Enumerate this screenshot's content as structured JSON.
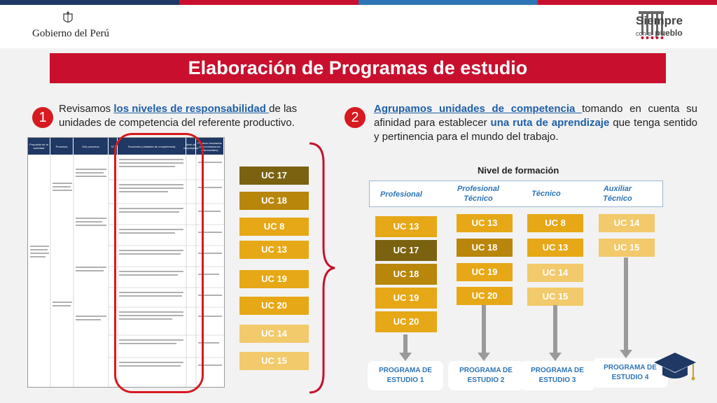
{
  "header": {
    "gob_label": "Gobierno del Perú",
    "brand_line1": "Siempre",
    "brand_line2_small": "con el",
    "brand_line2": "pueblo"
  },
  "title": "Elaboración de Programas de estudio",
  "step1": {
    "number": "1",
    "pre": "Revisamos ",
    "link": "los niveles de responsabilidad ",
    "post": "de las unidades de competencia del referente productivo."
  },
  "step2": {
    "number": "2",
    "link": "Agrupamos unidades de competencia ",
    "mid": "tomando en cuenta su afinidad para establecer ",
    "em": "una ruta de aprendizaje",
    "post": " que tenga sentido y pertinencia para el mundo del trabajo."
  },
  "table_headers": [
    "Propósito de la actividad",
    "Procesos",
    "Sub procesos",
    "N°",
    "Funciones (unidades de competencia)",
    "Nivel de complejidad",
    "Puestos vinculados (denominaciones referenciales)"
  ],
  "uc_column": [
    "UC 17",
    "UC 18",
    "UC 8",
    "UC 13",
    "UC 19",
    "UC 20",
    "UC 14",
    "UC 15"
  ],
  "nivel_title": "Nivel de formación",
  "levels": [
    "Profesional",
    "Profesional Técnico",
    "Técnico",
    "Auxiliar Técnico"
  ],
  "groups": [
    [
      "UC 13",
      "UC 17",
      "UC 18",
      "UC 19",
      "UC 20"
    ],
    [
      "UC 13",
      "UC 18",
      "UC 19",
      "UC 20"
    ],
    [
      "UC 8",
      "UC 13",
      "UC 14",
      "UC 15"
    ],
    [
      "UC 14",
      "UC 15"
    ]
  ],
  "programs": [
    "PROGRAMA DE ESTUDIO 1",
    "PROGRAMA DE ESTUDIO 2",
    "PROGRAMA DE ESTUDIO 3",
    "PROGRAMA DE ESTUDIO 4"
  ],
  "colors": {
    "dark_olive": "#7a6210",
    "gold": "#b8860b",
    "amber": "#e6a817",
    "pale": "#f2c96b",
    "red": "#c8102e",
    "blue": "#2e75b6"
  }
}
